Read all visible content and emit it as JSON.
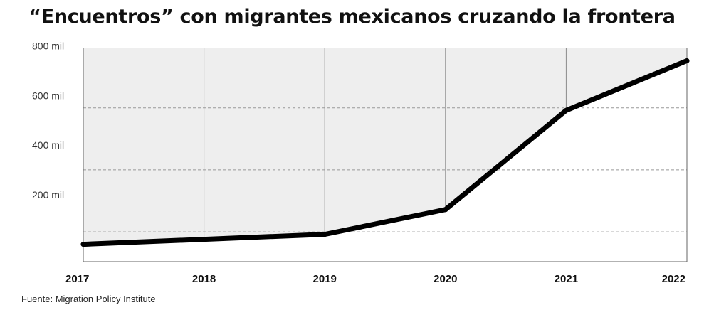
{
  "chart_data": {
    "type": "area",
    "title": "“Encuentros” con migrantes mexicanos cruzando la frontera",
    "xlabel": "",
    "ylabel": "",
    "categories": [
      "2017",
      "2018",
      "2019",
      "2020",
      "2021",
      "2022"
    ],
    "values": [
      0,
      20000,
      40000,
      140000,
      540000,
      740000
    ],
    "ylim": [
      -70000,
      790000
    ],
    "y_ticks": [
      {
        "value": 800000,
        "label": "800 mil"
      },
      {
        "value": 600000,
        "label": "600 mil"
      },
      {
        "value": 400000,
        "label": "400 mil"
      },
      {
        "value": 200000,
        "label": "200 mil"
      }
    ],
    "grid": true,
    "legend": "none",
    "colors": {
      "line": "#000000",
      "above_fill": "#eeeeee",
      "below_fill": "#ffffff",
      "grid": "#999999"
    }
  },
  "source": "Fuente: Migration Policy Institute"
}
